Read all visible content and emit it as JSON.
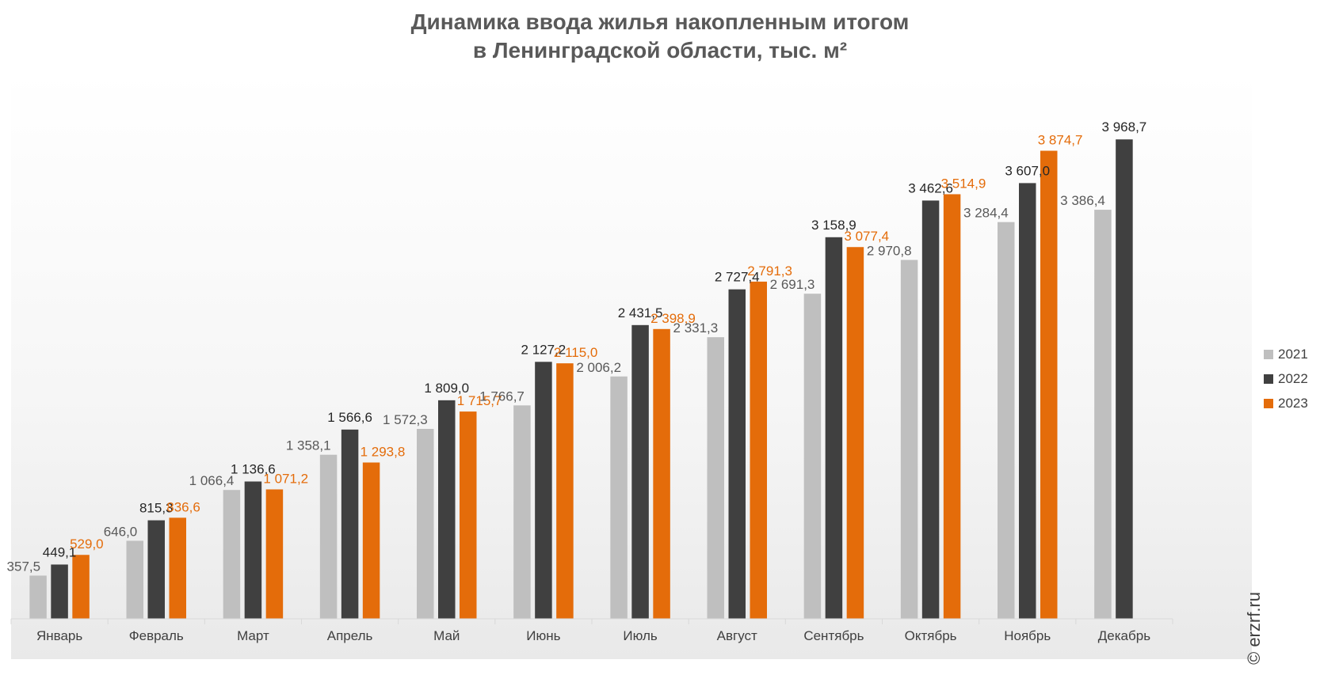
{
  "chart_data": {
    "type": "bar",
    "title": "Динамика ввода жилья накопленным итогом\nв Ленинградской области, тыс. м²",
    "categories": [
      "Январь",
      "Февраль",
      "Март",
      "Апрель",
      "Май",
      "Июнь",
      "Июль",
      "Август",
      "Сентябрь",
      "Октябрь",
      "Ноябрь",
      "Декабрь"
    ],
    "series": [
      {
        "name": "2021",
        "color": "#bfbfbf",
        "label_color": "#595959",
        "values": [
          357.5,
          646.0,
          1066.4,
          1358.1,
          1572.3,
          1766.7,
          2006.2,
          2331.3,
          2691.3,
          2970.8,
          3284.4,
          3386.4
        ],
        "labels": [
          "357,5",
          "646,0",
          "1 066,4",
          "1 358,1",
          "1 572,3",
          "1 766,7",
          "2 006,2",
          "2 331,3",
          "2 691,3",
          "2 970,8",
          "3 284,4",
          "3 386,4"
        ]
      },
      {
        "name": "2022",
        "color": "#404040",
        "label_color": "#262626",
        "values": [
          449.1,
          815.3,
          1136.6,
          1566.6,
          1809.0,
          2127.2,
          2431.5,
          2727.4,
          3158.9,
          3462.6,
          3607.0,
          3968.7
        ],
        "labels": [
          "449,1",
          "815,3",
          "1 136,6",
          "1 566,6",
          "1 809,0",
          "2 127,2",
          "2 431,5",
          "2 727,4",
          "3 158,9",
          "3 462,6",
          "3 607,0",
          "3 968,7"
        ]
      },
      {
        "name": "2023",
        "color": "#e46c0a",
        "label_color": "#e46c0a",
        "values": [
          529.0,
          836.6,
          1071.2,
          1293.8,
          1715.7,
          2115.0,
          2398.9,
          2791.3,
          3077.4,
          3514.9,
          3874.7,
          null
        ],
        "labels": [
          "529,0",
          "836,6",
          "1 071,2",
          "1 293,8",
          "1 715,7",
          "2 115,0",
          "2 398,9",
          "2 791,3",
          "3 077,4",
          "3 514,9",
          "3 874,7",
          ""
        ]
      }
    ],
    "ylim": [
      0,
      4300
    ],
    "grid": false,
    "legend": "right"
  },
  "watermark": "© erzrf.ru"
}
